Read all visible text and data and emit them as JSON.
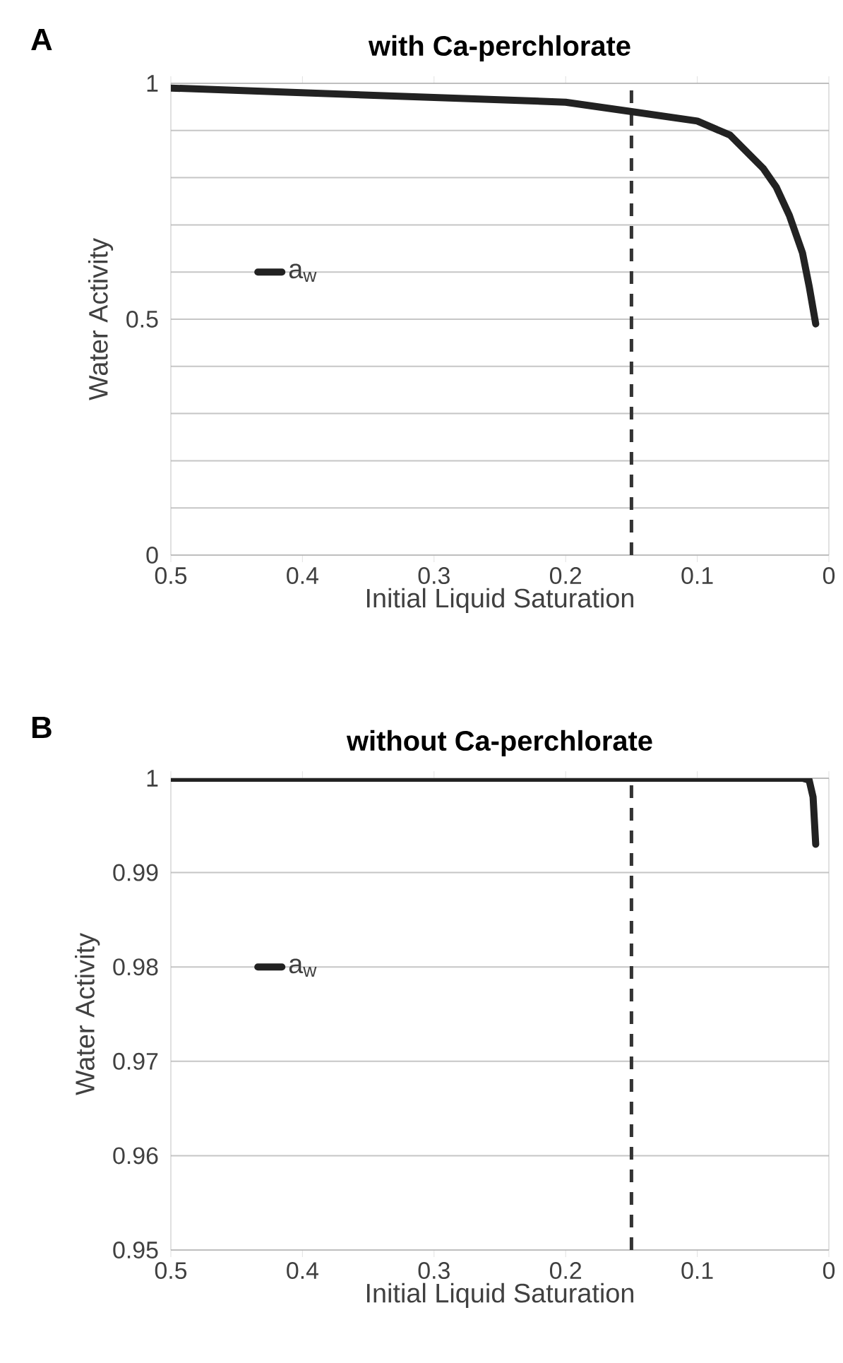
{
  "chart_data": [
    {
      "type": "line",
      "title": "with Ca-perchlorate",
      "xlabel": "Initial Liquid Saturation",
      "ylabel": "Water Activity",
      "annotations": [
        "A"
      ],
      "x": [
        0.5,
        0.4,
        0.3,
        0.2,
        0.15,
        0.1,
        0.075,
        0.05,
        0.04,
        0.03,
        0.02,
        0.015,
        0.01
      ],
      "series": [
        {
          "name": "a$_{w}$",
          "color": "#222222",
          "values": [
            0.99,
            0.98,
            0.97,
            0.96,
            0.94,
            0.92,
            0.89,
            0.82,
            0.78,
            0.72,
            0.64,
            0.57,
            0.49
          ]
        }
      ],
      "xlim": [
        0.5,
        0
      ],
      "xticks": [
        0.5,
        0.4,
        0.3,
        0.2,
        0.1,
        0
      ],
      "ylim": [
        0,
        1
      ],
      "yticks": [
        0,
        {
          "value": 0.1,
          "label": null
        },
        {
          "value": 0.2,
          "label": null
        },
        {
          "value": 0.3,
          "label": null
        },
        {
          "value": 0.4,
          "label": null
        },
        0.5,
        {
          "value": 0.6,
          "label": null
        },
        {
          "value": 0.7,
          "label": null
        },
        {
          "value": 0.8,
          "label": null
        },
        {
          "value": 0.9,
          "label": null
        },
        1
      ],
      "ref_lines": [
        {
          "axis": "x",
          "value": 0.15,
          "color": "#333333",
          "line_style": "dashed"
        }
      ],
      "grid": "y",
      "legend": "left",
      "marker": "none",
      "line_style": "solid"
    },
    {
      "type": "line",
      "title": "without Ca-perchlorate",
      "xlabel": "Initial Liquid Saturation",
      "ylabel": "Water Activity",
      "annotations": [
        "B"
      ],
      "x": [
        0.5,
        0.3,
        0.1,
        0.02,
        0.015,
        0.012,
        0.01
      ],
      "series": [
        {
          "name": "a$_{w}$",
          "color": "#222222",
          "values": [
            1,
            1,
            1,
            1,
            0.9998,
            0.998,
            0.993
          ]
        }
      ],
      "xlim": [
        0.5,
        0
      ],
      "xticks": [
        0.5,
        0.4,
        0.3,
        0.2,
        0.1,
        0
      ],
      "ylim": [
        0.95,
        1
      ],
      "yticks": [
        0.95,
        0.96,
        0.97,
        0.98,
        0.99,
        1
      ],
      "ref_lines": [
        {
          "axis": "x",
          "value": 0.15,
          "color": "#333333",
          "line_style": "dashed"
        }
      ],
      "grid": "y",
      "legend": "left",
      "marker": "none",
      "line_style": "solid"
    }
  ]
}
